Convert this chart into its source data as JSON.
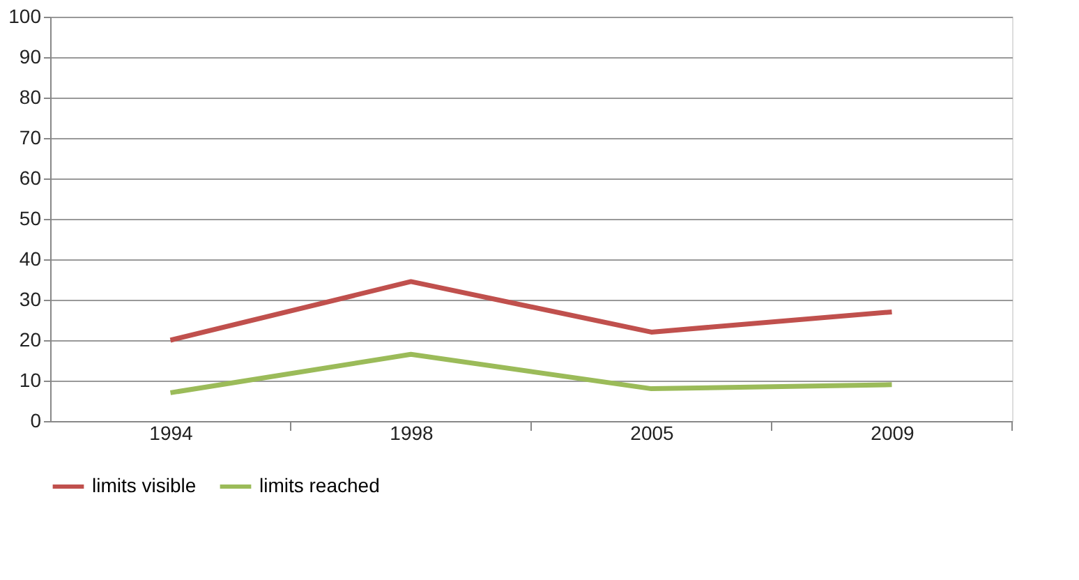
{
  "chart_data": {
    "type": "line",
    "categories": [
      "1994",
      "1998",
      "2005",
      "2009"
    ],
    "series": [
      {
        "name": "limits visible",
        "color": "#c0504d",
        "values": [
          20,
          34.5,
          22,
          27
        ]
      },
      {
        "name": "limits reached",
        "color": "#9bbb59",
        "values": [
          7,
          16.5,
          8,
          9
        ]
      }
    ],
    "ylim": [
      0,
      100
    ],
    "yticks": [
      0,
      10,
      20,
      30,
      40,
      50,
      60,
      70,
      80,
      90,
      100
    ],
    "grid": "y",
    "legend": "bottom",
    "marker": "none",
    "line_style": "solid"
  }
}
